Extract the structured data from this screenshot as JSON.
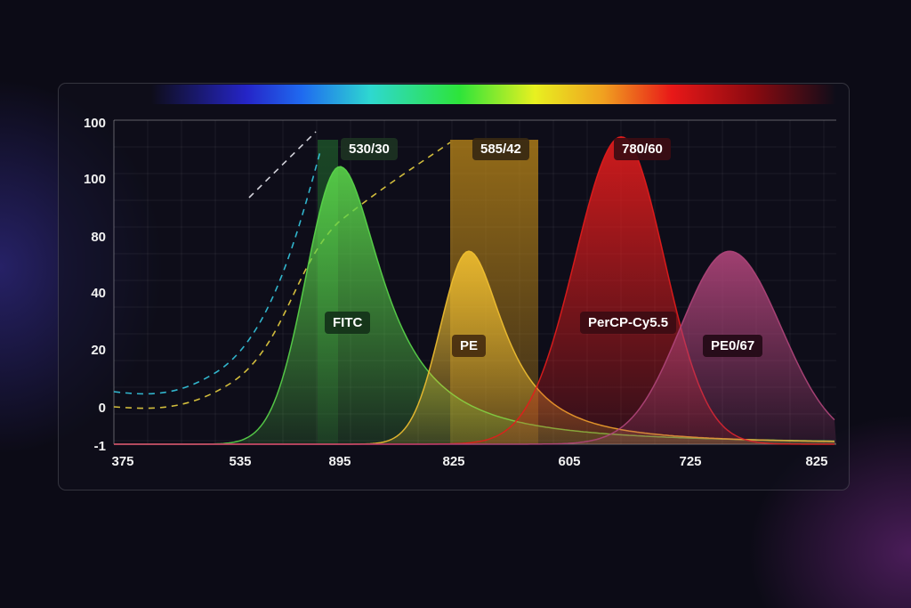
{
  "chart_data": {
    "type": "area",
    "title": "",
    "xlabel": "",
    "ylabel": "",
    "x_tick_labels": [
      "375",
      "535",
      "895",
      "825",
      "605",
      "725",
      "825"
    ],
    "y_tick_labels": [
      "100",
      "100",
      "80",
      "40",
      "20",
      "0",
      "-1"
    ],
    "grid": true,
    "legend": "none",
    "series": [
      {
        "name": "FITC",
        "peak_tick_index": 2.0,
        "peak_value": 105,
        "color": "#5ad64a"
      },
      {
        "name": "PE",
        "peak_tick_index": 3.13,
        "peak_value": 68,
        "color": "#f2c030"
      },
      {
        "name": "PerCP-Cy5.5",
        "peak_tick_index": 4.43,
        "peak_value": 118,
        "color": "#e41c1c"
      },
      {
        "name": "PE0/67",
        "peak_tick_index": 5.31,
        "peak_value": 68,
        "color": "#b0457a"
      }
    ],
    "filter_bands": [
      {
        "label": "530/30",
        "color": "#1e5a2a"
      },
      {
        "label": "585/42",
        "color": "#c08a18"
      },
      {
        "label": "780/60",
        "color": "#5a0e14"
      }
    ],
    "dashed_curves": [
      {
        "color": "#35c8e0"
      },
      {
        "color": "#e8d040"
      },
      {
        "color": "#e8e8f0"
      }
    ],
    "spectrum_bar": true
  }
}
